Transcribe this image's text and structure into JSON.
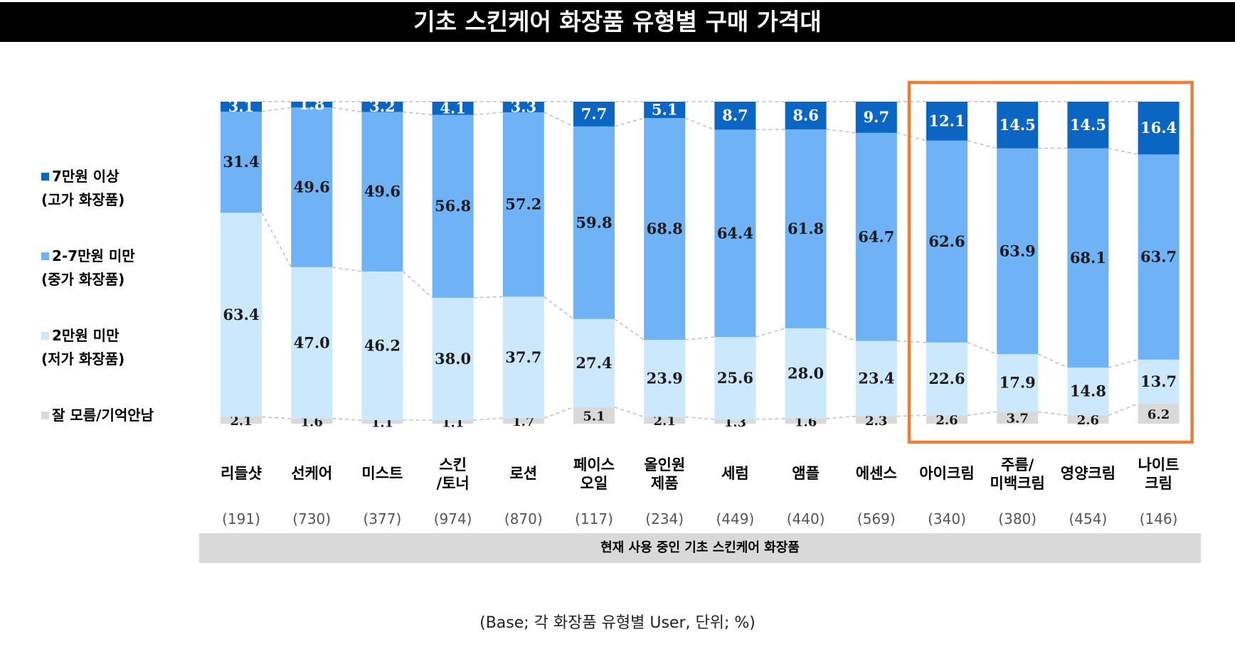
{
  "title": "기초 스킨케어 화장품 유형별 구매 가격대",
  "footnote": "(Base; 각 화장품 유형별 User, 단위; %)",
  "axis_title": "현재 사용 중인 기초 스킨케어 화장품",
  "legend": [
    {
      "line1": "7만원 이상",
      "line2": "(고가 화장품)",
      "color": "#0a66c2"
    },
    {
      "line1": "2-7만원 미만",
      "line2": "(중가 화장품)",
      "color": "#6fb2f5"
    },
    {
      "line1": "2만원 미만",
      "line2": "(저가 화장품)",
      "color": "#cce8fd"
    },
    {
      "line1": "잘 모름/기억안남",
      "line2": "",
      "color": "#d9d9d9"
    }
  ],
  "chart_data": {
    "type": "bar",
    "stacked": true,
    "ylim": [
      0,
      100
    ],
    "grid": false,
    "legend_position": "left",
    "highlight": {
      "categories": [
        10,
        11,
        12,
        13
      ],
      "color": "#ee7e32"
    },
    "categories": [
      {
        "line1": "리들샷",
        "line2": "",
        "base": "(191)"
      },
      {
        "line1": "선케어",
        "line2": "",
        "base": "(730)"
      },
      {
        "line1": "미스트",
        "line2": "",
        "base": "(377)"
      },
      {
        "line1": "스킨",
        "line2": "/토너",
        "base": "(974)"
      },
      {
        "line1": "로션",
        "line2": "",
        "base": "(870)"
      },
      {
        "line1": "페이스",
        "line2": "오일",
        "base": "(117)"
      },
      {
        "line1": "올인원",
        "line2": "제품",
        "base": "(234)"
      },
      {
        "line1": "세럼",
        "line2": "",
        "base": "(449)"
      },
      {
        "line1": "앰플",
        "line2": "",
        "base": "(440)"
      },
      {
        "line1": "에센스",
        "line2": "",
        "base": "(569)"
      },
      {
        "line1": "아이크림",
        "line2": "",
        "base": "(340)"
      },
      {
        "line1": "주름/",
        "line2": "미백크림",
        "base": "(380)"
      },
      {
        "line1": "영양크림",
        "line2": "",
        "base": "(454)"
      },
      {
        "line1": "나이트",
        "line2": "크림",
        "base": "(146)"
      }
    ],
    "series": [
      {
        "name": "잘 모름/기억안남",
        "color": "#d9d9d9",
        "values": [
          2.1,
          1.6,
          1.1,
          1.1,
          1.7,
          5.1,
          2.1,
          1.3,
          1.6,
          2.3,
          2.6,
          3.7,
          2.6,
          6.2
        ],
        "labels": [
          "2.1",
          "1.6",
          "1.1",
          "1.1",
          "1.7",
          "5.1",
          "2.1",
          "1.3",
          "1.6",
          "2.3",
          "2.6",
          "3.7",
          "2.6",
          "6.2"
        ]
      },
      {
        "name": "2만원 미만",
        "color": "#cce8fd",
        "values": [
          63.4,
          47.0,
          46.2,
          38.0,
          37.7,
          27.4,
          23.9,
          25.6,
          28.0,
          23.4,
          22.6,
          17.9,
          14.8,
          13.7
        ],
        "labels": [
          "63.4",
          "47.0",
          "46.2",
          "38.0",
          "37.7",
          "27.4",
          "23.9",
          "25.6",
          "28.0",
          "23.4",
          "22.6",
          "17.9",
          "14.8",
          "13.7"
        ]
      },
      {
        "name": "2-7만원 미만",
        "color": "#6fb2f5",
        "values": [
          31.4,
          49.6,
          49.6,
          56.8,
          57.2,
          59.8,
          68.8,
          64.4,
          61.8,
          64.7,
          62.6,
          63.9,
          68.1,
          63.7
        ],
        "labels": [
          "31.4",
          "49.6",
          "49.6",
          "56.8",
          "57.2",
          "59.8",
          "68.8",
          "64.4",
          "61.8",
          "64.7",
          "62.6",
          "63.9",
          "68.1",
          "63.7"
        ]
      },
      {
        "name": "7만원 이상",
        "color": "#0a66c2",
        "values": [
          3.1,
          1.8,
          3.2,
          4.1,
          3.3,
          7.7,
          5.1,
          8.7,
          8.6,
          9.7,
          12.1,
          14.5,
          14.5,
          16.4
        ],
        "labels": [
          "3.1",
          "1.8",
          "3.2",
          "4.1",
          "3.3",
          "7.7",
          "5.1",
          "8.7",
          "8.6",
          "9.7",
          "12.1",
          "14.5",
          "14.5",
          "16.4"
        ]
      }
    ]
  }
}
